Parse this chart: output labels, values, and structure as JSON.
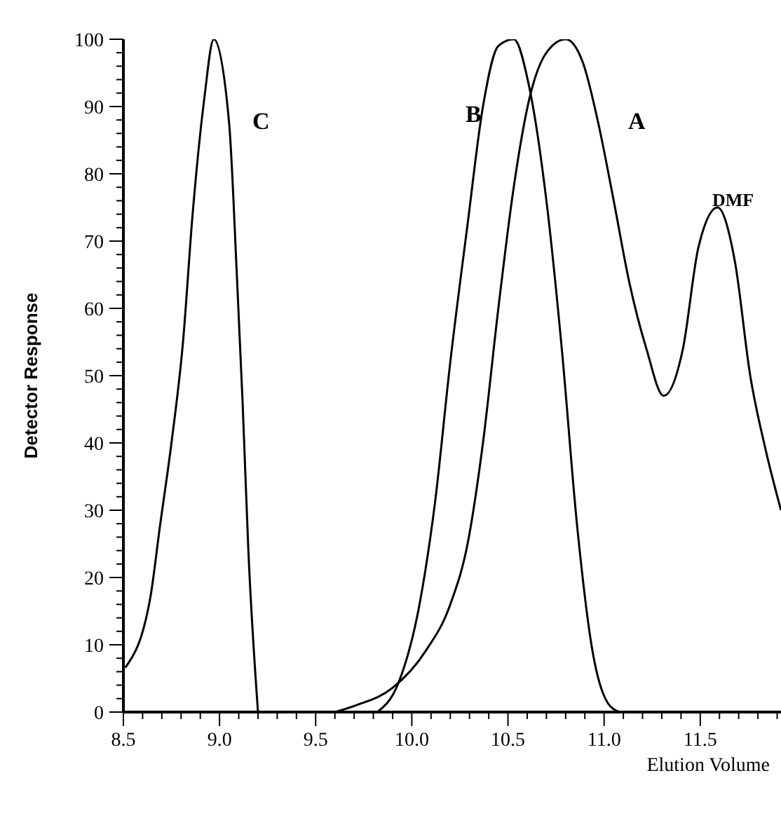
{
  "chart_data": {
    "type": "line",
    "xlabel": "Elution Volume",
    "ylabel": "Detector Response",
    "xlim": [
      8.5,
      11.92
    ],
    "ylim": [
      0,
      100
    ],
    "xticks": [
      {
        "value": 8.5,
        "label": "8.5"
      },
      {
        "value": 8.6,
        "label": null
      },
      {
        "value": 8.7,
        "label": null
      },
      {
        "value": 8.8,
        "label": null
      },
      {
        "value": 8.9,
        "label": null
      },
      {
        "value": 9,
        "label": "9.0"
      },
      {
        "value": 9.1,
        "label": null
      },
      {
        "value": 9.2,
        "label": null
      },
      {
        "value": 9.3,
        "label": null
      },
      {
        "value": 9.4,
        "label": null
      },
      {
        "value": 9.5,
        "label": "9.5"
      },
      {
        "value": 9.6,
        "label": null
      },
      {
        "value": 9.7,
        "label": null
      },
      {
        "value": 9.8,
        "label": null
      },
      {
        "value": 9.9,
        "label": null
      },
      {
        "value": 10,
        "label": "10.0"
      },
      {
        "value": 10.1,
        "label": null
      },
      {
        "value": 10.2,
        "label": null
      },
      {
        "value": 10.3,
        "label": null
      },
      {
        "value": 10.4,
        "label": null
      },
      {
        "value": 10.5,
        "label": "10.5"
      },
      {
        "value": 10.6,
        "label": null
      },
      {
        "value": 10.7,
        "label": null
      },
      {
        "value": 10.8,
        "label": null
      },
      {
        "value": 10.9,
        "label": null
      },
      {
        "value": 11,
        "label": "11.0"
      },
      {
        "value": 11.1,
        "label": null
      },
      {
        "value": 11.2,
        "label": null
      },
      {
        "value": 11.3,
        "label": null
      },
      {
        "value": 11.4,
        "label": null
      },
      {
        "value": 11.5,
        "label": "11.5"
      },
      {
        "value": 11.6,
        "label": null
      },
      {
        "value": 11.7,
        "label": null
      },
      {
        "value": 11.8,
        "label": null
      },
      {
        "value": 11.9,
        "label": null
      }
    ],
    "yticks": [
      0,
      {
        "value": 2,
        "label": null
      },
      {
        "value": 4,
        "label": null
      },
      {
        "value": 6,
        "label": null
      },
      {
        "value": 8,
        "label": null
      },
      10,
      {
        "value": 12,
        "label": null
      },
      {
        "value": 14,
        "label": null
      },
      {
        "value": 16,
        "label": null
      },
      {
        "value": 18,
        "label": null
      },
      20,
      {
        "value": 22,
        "label": null
      },
      {
        "value": 24,
        "label": null
      },
      {
        "value": 26,
        "label": null
      },
      {
        "value": 28,
        "label": null
      },
      30,
      {
        "value": 32,
        "label": null
      },
      {
        "value": 34,
        "label": null
      },
      {
        "value": 36,
        "label": null
      },
      {
        "value": 38,
        "label": null
      },
      40,
      {
        "value": 42,
        "label": null
      },
      {
        "value": 44,
        "label": null
      },
      {
        "value": 46,
        "label": null
      },
      {
        "value": 48,
        "label": null
      },
      50,
      {
        "value": 52,
        "label": null
      },
      {
        "value": 54,
        "label": null
      },
      {
        "value": 56,
        "label": null
      },
      {
        "value": 58,
        "label": null
      },
      60,
      {
        "value": 62,
        "label": null
      },
      {
        "value": 64,
        "label": null
      },
      {
        "value": 66,
        "label": null
      },
      {
        "value": 68,
        "label": null
      },
      70,
      {
        "value": 72,
        "label": null
      },
      {
        "value": 74,
        "label": null
      },
      {
        "value": 76,
        "label": null
      },
      {
        "value": 78,
        "label": null
      },
      80,
      {
        "value": 82,
        "label": null
      },
      {
        "value": 84,
        "label": null
      },
      {
        "value": 86,
        "label": null
      },
      {
        "value": 88,
        "label": null
      },
      90,
      {
        "value": 92,
        "label": null
      },
      {
        "value": 94,
        "label": null
      },
      {
        "value": 96,
        "label": null
      },
      {
        "value": 98,
        "label": null
      },
      100
    ],
    "grid": false,
    "legend": false,
    "marker": "none",
    "line_style": "solid",
    "series": [
      {
        "color": "#000000",
        "x": [
          8.51,
          8.64,
          8.69,
          8.75,
          8.81,
          8.86,
          8.92,
          8.97,
          9.05,
          9.09,
          9.12,
          9.15,
          9.2
        ],
        "values": [
          6.6,
          17,
          27.6,
          40,
          55,
          74,
          91,
          100,
          87.5,
          65,
          46,
          24,
          0
        ]
      },
      {
        "color": "#000000",
        "x": [
          9.82,
          9.93,
          10.04,
          10.12,
          10.2,
          10.29,
          10.37,
          10.45,
          10.53,
          10.61,
          10.7,
          10.78,
          10.86,
          10.94,
          11.02,
          11.08
        ],
        "values": [
          0,
          4.3,
          16,
          31,
          52,
          72.5,
          90,
          99,
          100,
          93,
          76,
          54,
          27.6,
          9,
          1.3,
          0
        ]
      },
      {
        "color": "#000000",
        "x": [
          9.6,
          9.71,
          9.9,
          10.07,
          10.2,
          10.29,
          10.37,
          10.45,
          10.53,
          10.61,
          10.7,
          10.8,
          10.89,
          10.97,
          11.05,
          11.13,
          11.22,
          11.31,
          11.41,
          11.49,
          11.59,
          11.68,
          11.76,
          11.84,
          11.92
        ],
        "values": [
          0,
          1,
          3.6,
          9,
          16,
          25,
          40,
          60,
          78,
          91,
          98,
          100,
          96.5,
          87.5,
          76,
          64,
          54,
          47,
          54,
          69,
          75,
          67,
          50,
          39,
          30
        ]
      }
    ],
    "annotations": [
      "C",
      "B",
      "A",
      "DMF"
    ]
  }
}
